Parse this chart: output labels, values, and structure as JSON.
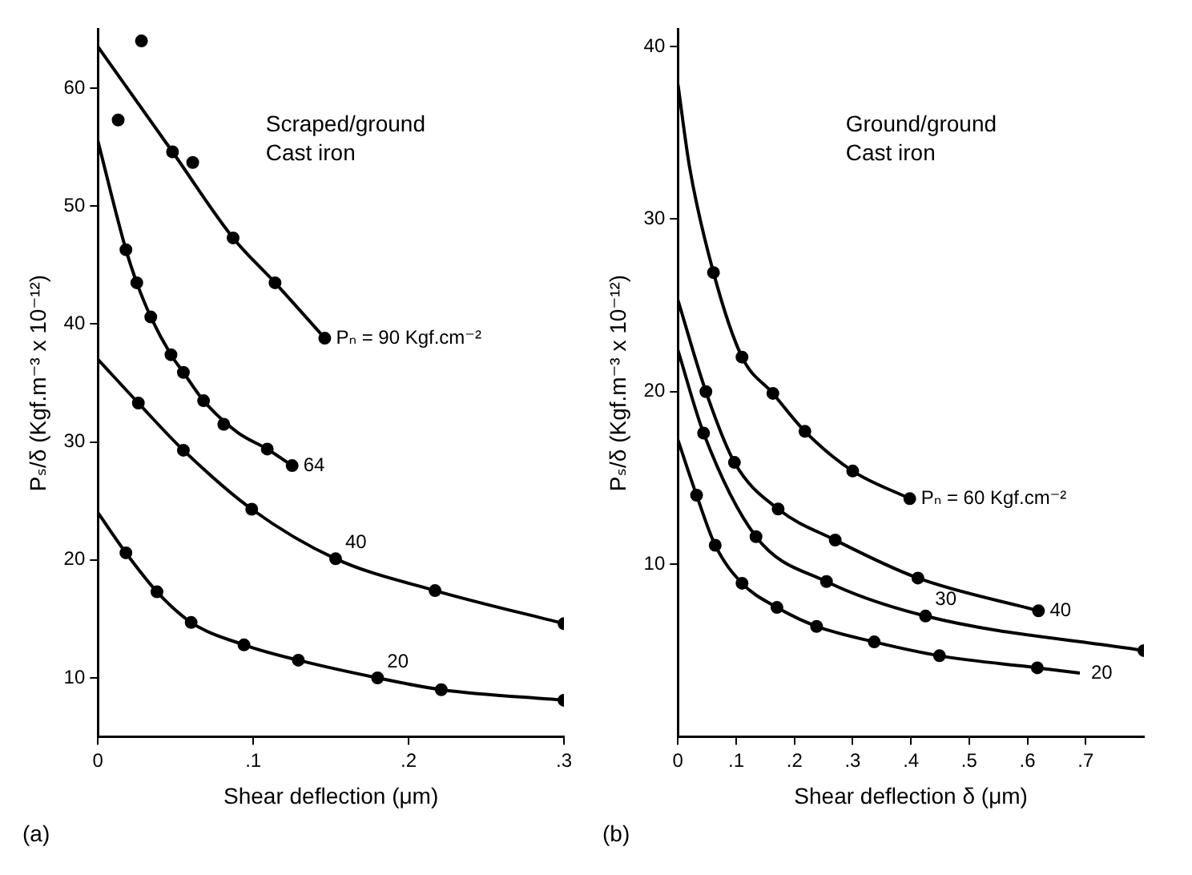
{
  "chart_data": [
    {
      "type": "line",
      "xlabel": "Shear deflection (μm)",
      "ylabel": "Pₛ/δ (Kgf.m⁻³ x 10⁻¹²)",
      "xlim": [
        0,
        0.3
      ],
      "ylim": [
        5,
        65
      ],
      "xticks": [
        0,
        {
          "value": 0.1,
          "label": ".1"
        },
        {
          "value": 0.2,
          "label": ".2"
        },
        {
          "value": 0.3,
          "label": ".3"
        }
      ],
      "yticks": [
        10,
        20,
        30,
        40,
        50,
        60
      ],
      "grid": false,
      "legend": false,
      "line_style": "solid",
      "annotations": [
        "Scraped/ground\nCast iron",
        "(a)"
      ],
      "series": [
        {
          "name": "Pₙ = 90 Kgf.cm⁻²",
          "marker": "none",
          "color": "#000000",
          "x": [
            0,
            0.048,
            0.087,
            0.114,
            0.146
          ],
          "values": [
            63.5,
            54.6,
            47.3,
            43.5,
            38.8
          ]
        },
        {
          "type": "scatter",
          "marker": "circle",
          "color": "#000000",
          "x": [
            0.013,
            0.028,
            0.048,
            0.061,
            0.087,
            0.114,
            0.146
          ],
          "values": [
            57.3,
            64,
            54.6,
            53.7,
            47.3,
            43.5,
            38.8
          ]
        },
        {
          "name": "64",
          "marker": "none",
          "color": "#000000",
          "x": [
            0,
            0.018,
            0.025,
            0.034,
            0.047,
            0.055,
            0.068,
            0.09,
            0.109,
            0.125
          ],
          "values": [
            55.5,
            46.3,
            43.5,
            40.6,
            37.4,
            35.9,
            33.5,
            30.8,
            29.4,
            28
          ]
        },
        {
          "type": "scatter",
          "marker": "circle",
          "color": "#000000",
          "x": [
            0.018,
            0.025,
            0.034,
            0.047,
            0.055,
            0.068,
            0.081,
            0.109,
            0.125
          ],
          "values": [
            46.3,
            43.5,
            40.6,
            37.4,
            35.9,
            33.5,
            31.5,
            29.4,
            28
          ]
        },
        {
          "name": "40",
          "marker": "none",
          "color": "#000000",
          "x": [
            0,
            0.026,
            0.055,
            0.099,
            0.153,
            0.217,
            0.3
          ],
          "values": [
            37,
            33.3,
            29.3,
            24.3,
            20.1,
            17.4,
            14.6
          ]
        },
        {
          "type": "scatter",
          "marker": "circle",
          "color": "#000000",
          "x": [
            0.026,
            0.055,
            0.099,
            0.153,
            0.217,
            0.3
          ],
          "values": [
            33.3,
            29.3,
            24.3,
            20.1,
            17.4,
            14.6
          ]
        },
        {
          "name": "20",
          "marker": "none",
          "color": "#000000",
          "x": [
            0,
            0.018,
            0.038,
            0.06,
            0.094,
            0.129,
            0.18,
            0.221,
            0.3
          ],
          "values": [
            24,
            20.6,
            17.3,
            14.7,
            12.8,
            11.5,
            10,
            9,
            8.1
          ]
        },
        {
          "type": "scatter",
          "marker": "circle",
          "color": "#000000",
          "x": [
            0.018,
            0.038,
            0.06,
            0.094,
            0.129,
            0.18,
            0.221,
            0.3
          ],
          "values": [
            20.6,
            17.3,
            14.7,
            12.8,
            11.5,
            10,
            9,
            8.1
          ]
        }
      ]
    },
    {
      "type": "line",
      "xlabel": "Shear deflection δ (μm)",
      "ylabel": "Pₛ/δ (Kgf.m⁻³ x 10⁻¹²)",
      "xlim": [
        0,
        0.8
      ],
      "ylim": [
        0,
        41
      ],
      "xticks": [
        0,
        {
          "value": 0.1,
          "label": ".1"
        },
        {
          "value": 0.2,
          "label": ".2"
        },
        {
          "value": 0.3,
          "label": ".3"
        },
        {
          "value": 0.4,
          "label": ".4"
        },
        {
          "value": 0.5,
          "label": ".5"
        },
        {
          "value": 0.6,
          "label": ".6"
        },
        {
          "value": 0.7,
          "label": ".7"
        }
      ],
      "yticks": [
        10,
        20,
        30,
        40
      ],
      "grid": false,
      "legend": false,
      "line_style": "solid",
      "annotations": [
        "Ground/ground\nCast iron",
        "(b)"
      ],
      "series": [
        {
          "name": "Pₙ = 60 Kgf.cm⁻²",
          "marker": "none",
          "color": "#000000",
          "x": [
            0,
            0.02,
            0.061,
            0.11,
            0.163,
            0.218,
            0.3,
            0.398
          ],
          "values": [
            37.8,
            33,
            26.9,
            22,
            19.9,
            17.7,
            15.4,
            13.8
          ]
        },
        {
          "type": "scatter",
          "marker": "circle",
          "color": "#000000",
          "x": [
            0.061,
            0.11,
            0.163,
            0.218,
            0.3,
            0.398
          ],
          "values": [
            26.9,
            22,
            19.9,
            17.7,
            15.4,
            13.8
          ]
        },
        {
          "name": "40",
          "marker": "none",
          "color": "#000000",
          "x": [
            0,
            0.048,
            0.097,
            0.172,
            0.27,
            0.412,
            0.619
          ],
          "values": [
            25.3,
            20,
            15.9,
            13.2,
            11.4,
            9.2,
            7.3
          ]
        },
        {
          "type": "scatter",
          "marker": "circle",
          "color": "#000000",
          "x": [
            0.048,
            0.097,
            0.172,
            0.27,
            0.412,
            0.619
          ],
          "values": [
            20,
            15.9,
            13.2,
            11.4,
            9.2,
            7.3
          ]
        },
        {
          "name": "30",
          "marker": "none",
          "color": "#000000",
          "x": [
            0,
            0.044,
            0.134,
            0.255,
            0.425,
            0.8
          ],
          "values": [
            22.4,
            17.6,
            11.6,
            9,
            7,
            5
          ]
        },
        {
          "type": "scatter",
          "marker": "circle",
          "color": "#000000",
          "x": [
            0.044,
            0.134,
            0.255,
            0.425,
            0.8
          ],
          "values": [
            17.6,
            11.6,
            9,
            7,
            5
          ]
        },
        {
          "name": "20",
          "marker": "none",
          "color": "#000000",
          "x": [
            0,
            0.032,
            0.064,
            0.11,
            0.17,
            0.238,
            0.337,
            0.449,
            0.617,
            0.69
          ],
          "values": [
            17.2,
            14,
            11.1,
            8.9,
            7.5,
            6.4,
            5.5,
            4.7,
            4,
            3.7
          ]
        },
        {
          "type": "scatter",
          "marker": "circle",
          "color": "#000000",
          "x": [
            0.032,
            0.064,
            0.11,
            0.17,
            0.238,
            0.337,
            0.449,
            0.617
          ],
          "values": [
            14,
            11.1,
            8.9,
            7.5,
            6.4,
            5.5,
            4.7,
            4
          ]
        }
      ]
    }
  ]
}
